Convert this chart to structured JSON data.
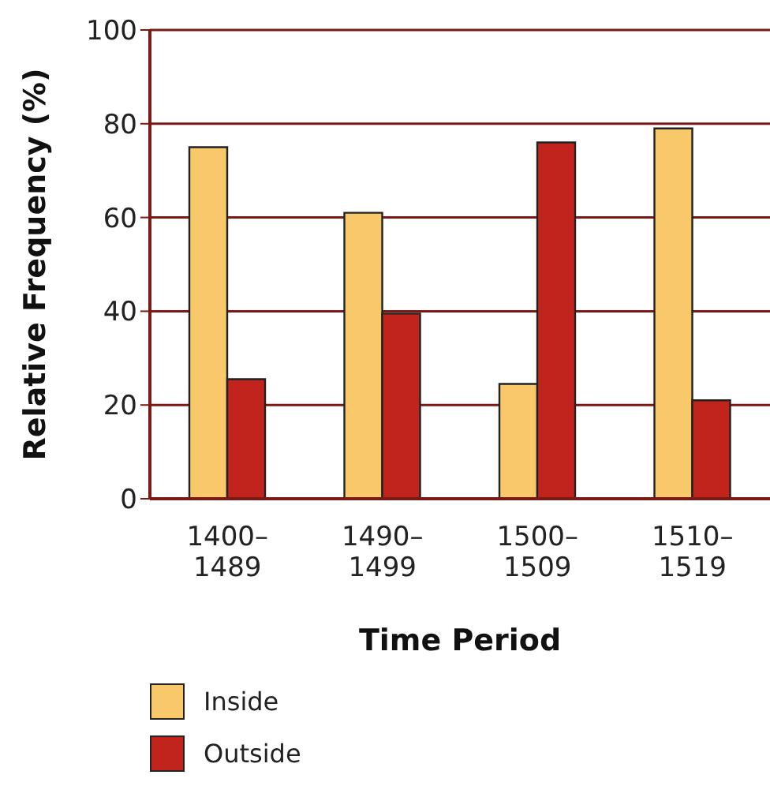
{
  "chart_data": {
    "type": "bar",
    "xlabel": "Time Period",
    "ylabel": "Relative Frequency (%)",
    "categories": [
      "1400–1489",
      "1490–1499",
      "1500–1509",
      "1510–1519"
    ],
    "series": [
      {
        "name": "Inside",
        "color": "#f8c86a",
        "values": [
          75,
          61,
          24.5,
          79
        ]
      },
      {
        "name": "Outside",
        "color": "#c0241c",
        "values": [
          25.5,
          39.5,
          76,
          21
        ]
      }
    ],
    "ylim": [
      0,
      100
    ],
    "yticks": [
      0,
      20,
      40,
      60,
      80,
      100
    ],
    "grid": "y",
    "legend": "bottom left"
  }
}
